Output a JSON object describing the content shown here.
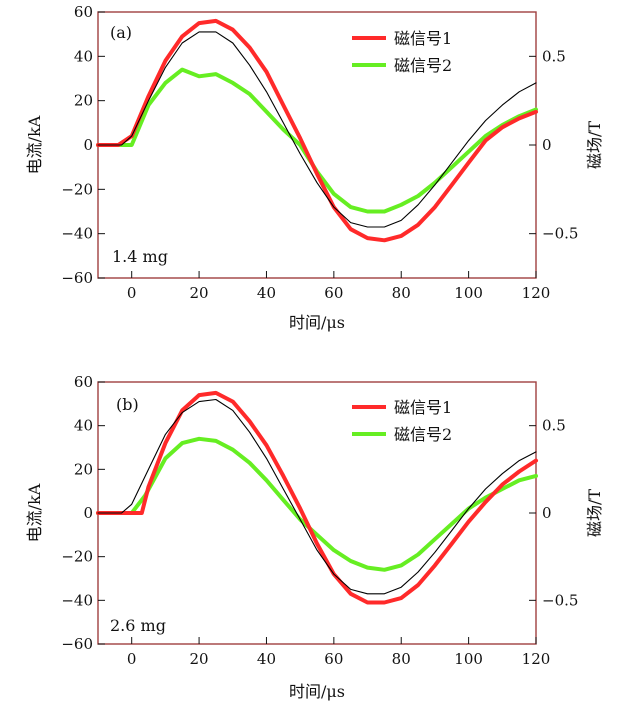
{
  "colors": {
    "signal1": "#ff2a2a",
    "signal2": "#66ee22",
    "current": "#000000",
    "frame": "#a04040"
  },
  "chart_data": [
    {
      "type": "line",
      "panel_label": "(a)",
      "annotation": "1.4 mg",
      "xlabel": "时间/μs",
      "ylabel": "电流/kA",
      "y2label": "磁场/T",
      "xlim": [
        -10,
        120
      ],
      "ylim": [
        -60,
        60
      ],
      "y2lim": [
        -0.75,
        0.75
      ],
      "xticks": [
        0,
        20,
        40,
        60,
        80,
        100,
        120
      ],
      "yticks": [
        -60,
        -40,
        -20,
        0,
        20,
        40,
        60
      ],
      "y2ticks": [
        0.5,
        0,
        -0.5
      ],
      "y2ticklabels": [
        "0.5",
        "0",
        "−0.5"
      ],
      "grid": false,
      "legend_position": "top-right",
      "series": [
        {
          "name": "",
          "axis": "left",
          "color": "#000000",
          "x": [
            -10,
            -3,
            0,
            5,
            10,
            15,
            20,
            25,
            30,
            35,
            40,
            45,
            50,
            55,
            60,
            65,
            70,
            75,
            80,
            85,
            90,
            95,
            100,
            105,
            110,
            115,
            120
          ],
          "y": [
            0,
            0,
            4,
            20,
            35,
            46,
            51,
            51,
            46,
            36,
            24,
            10,
            -4,
            -17,
            -28,
            -35,
            -37,
            -37,
            -34,
            -27,
            -18,
            -8,
            2,
            11,
            18,
            24,
            28
          ]
        },
        {
          "name": "磁信号1",
          "axis": "left",
          "color": "#ff2a2a",
          "x": [
            -10,
            -4,
            0,
            5,
            10,
            15,
            20,
            25,
            30,
            35,
            40,
            45,
            50,
            55,
            60,
            65,
            70,
            75,
            80,
            85,
            90,
            95,
            100,
            105,
            110,
            115,
            120
          ],
          "y": [
            0,
            0,
            4,
            22,
            38,
            49,
            55,
            56,
            52,
            44,
            33,
            18,
            3,
            -13,
            -28,
            -38,
            -42,
            -43,
            -41,
            -36,
            -28,
            -18,
            -8,
            2,
            8,
            12,
            15
          ]
        },
        {
          "name": "磁信号2",
          "axis": "left",
          "color": "#66ee22",
          "x": [
            -10,
            0,
            5,
            10,
            15,
            20,
            25,
            30,
            35,
            40,
            45,
            50,
            55,
            60,
            65,
            70,
            75,
            80,
            85,
            90,
            95,
            100,
            105,
            110,
            115,
            120
          ],
          "y": [
            0,
            0,
            18,
            28,
            34,
            31,
            32,
            28,
            23,
            15,
            7,
            0,
            -12,
            -22,
            -28,
            -30,
            -30,
            -27,
            -23,
            -17,
            -10,
            -3,
            4,
            9,
            13,
            16
          ]
        }
      ]
    },
    {
      "type": "line",
      "panel_label": "(b)",
      "annotation": "2.6 mg",
      "xlabel": "时间/μs",
      "ylabel": "电流/kA",
      "y2label": "磁场/T",
      "xlim": [
        -10,
        120
      ],
      "ylim": [
        -60,
        60
      ],
      "y2lim": [
        -0.75,
        0.75
      ],
      "xticks": [
        0,
        20,
        40,
        60,
        80,
        100,
        120
      ],
      "yticks": [
        -60,
        -40,
        -20,
        0,
        20,
        40,
        60
      ],
      "y2ticks": [
        0.5,
        0,
        -0.5
      ],
      "y2ticklabels": [
        "0.5",
        "0",
        "−0.5"
      ],
      "grid": false,
      "legend_position": "top-right",
      "series": [
        {
          "name": "",
          "axis": "left",
          "color": "#000000",
          "x": [
            -10,
            -3,
            0,
            5,
            10,
            15,
            20,
            25,
            30,
            35,
            40,
            45,
            50,
            55,
            60,
            65,
            70,
            75,
            80,
            85,
            90,
            95,
            100,
            105,
            110,
            115,
            120
          ],
          "y": [
            0,
            0,
            4,
            20,
            36,
            46,
            51,
            52,
            47,
            37,
            25,
            11,
            -3,
            -17,
            -28,
            -35,
            -37,
            -37,
            -34,
            -27,
            -18,
            -8,
            2,
            11,
            18,
            24,
            28
          ]
        },
        {
          "name": "磁信号1",
          "axis": "left",
          "color": "#ff2a2a",
          "x": [
            -10,
            -1,
            3,
            5,
            10,
            15,
            20,
            25,
            30,
            35,
            40,
            45,
            50,
            55,
            60,
            65,
            70,
            75,
            80,
            85,
            90,
            95,
            100,
            105,
            110,
            115,
            120
          ],
          "y": [
            0,
            0,
            0,
            12,
            32,
            47,
            54,
            55,
            51,
            42,
            31,
            17,
            2,
            -14,
            -28,
            -37,
            -41,
            -41,
            -39,
            -33,
            -24,
            -14,
            -4,
            5,
            13,
            19,
            24
          ]
        },
        {
          "name": "磁信号2",
          "axis": "left",
          "color": "#66ee22",
          "x": [
            -10,
            0,
            4,
            10,
            15,
            20,
            25,
            30,
            35,
            40,
            45,
            50,
            55,
            60,
            65,
            70,
            75,
            80,
            85,
            90,
            95,
            100,
            105,
            110,
            115,
            120
          ],
          "y": [
            0,
            0,
            8,
            25,
            32,
            34,
            33,
            29,
            23,
            15,
            6,
            -3,
            -10,
            -17,
            -22,
            -25,
            -26,
            -24,
            -19,
            -12,
            -5,
            2,
            7,
            11,
            15,
            17
          ]
        }
      ]
    }
  ]
}
